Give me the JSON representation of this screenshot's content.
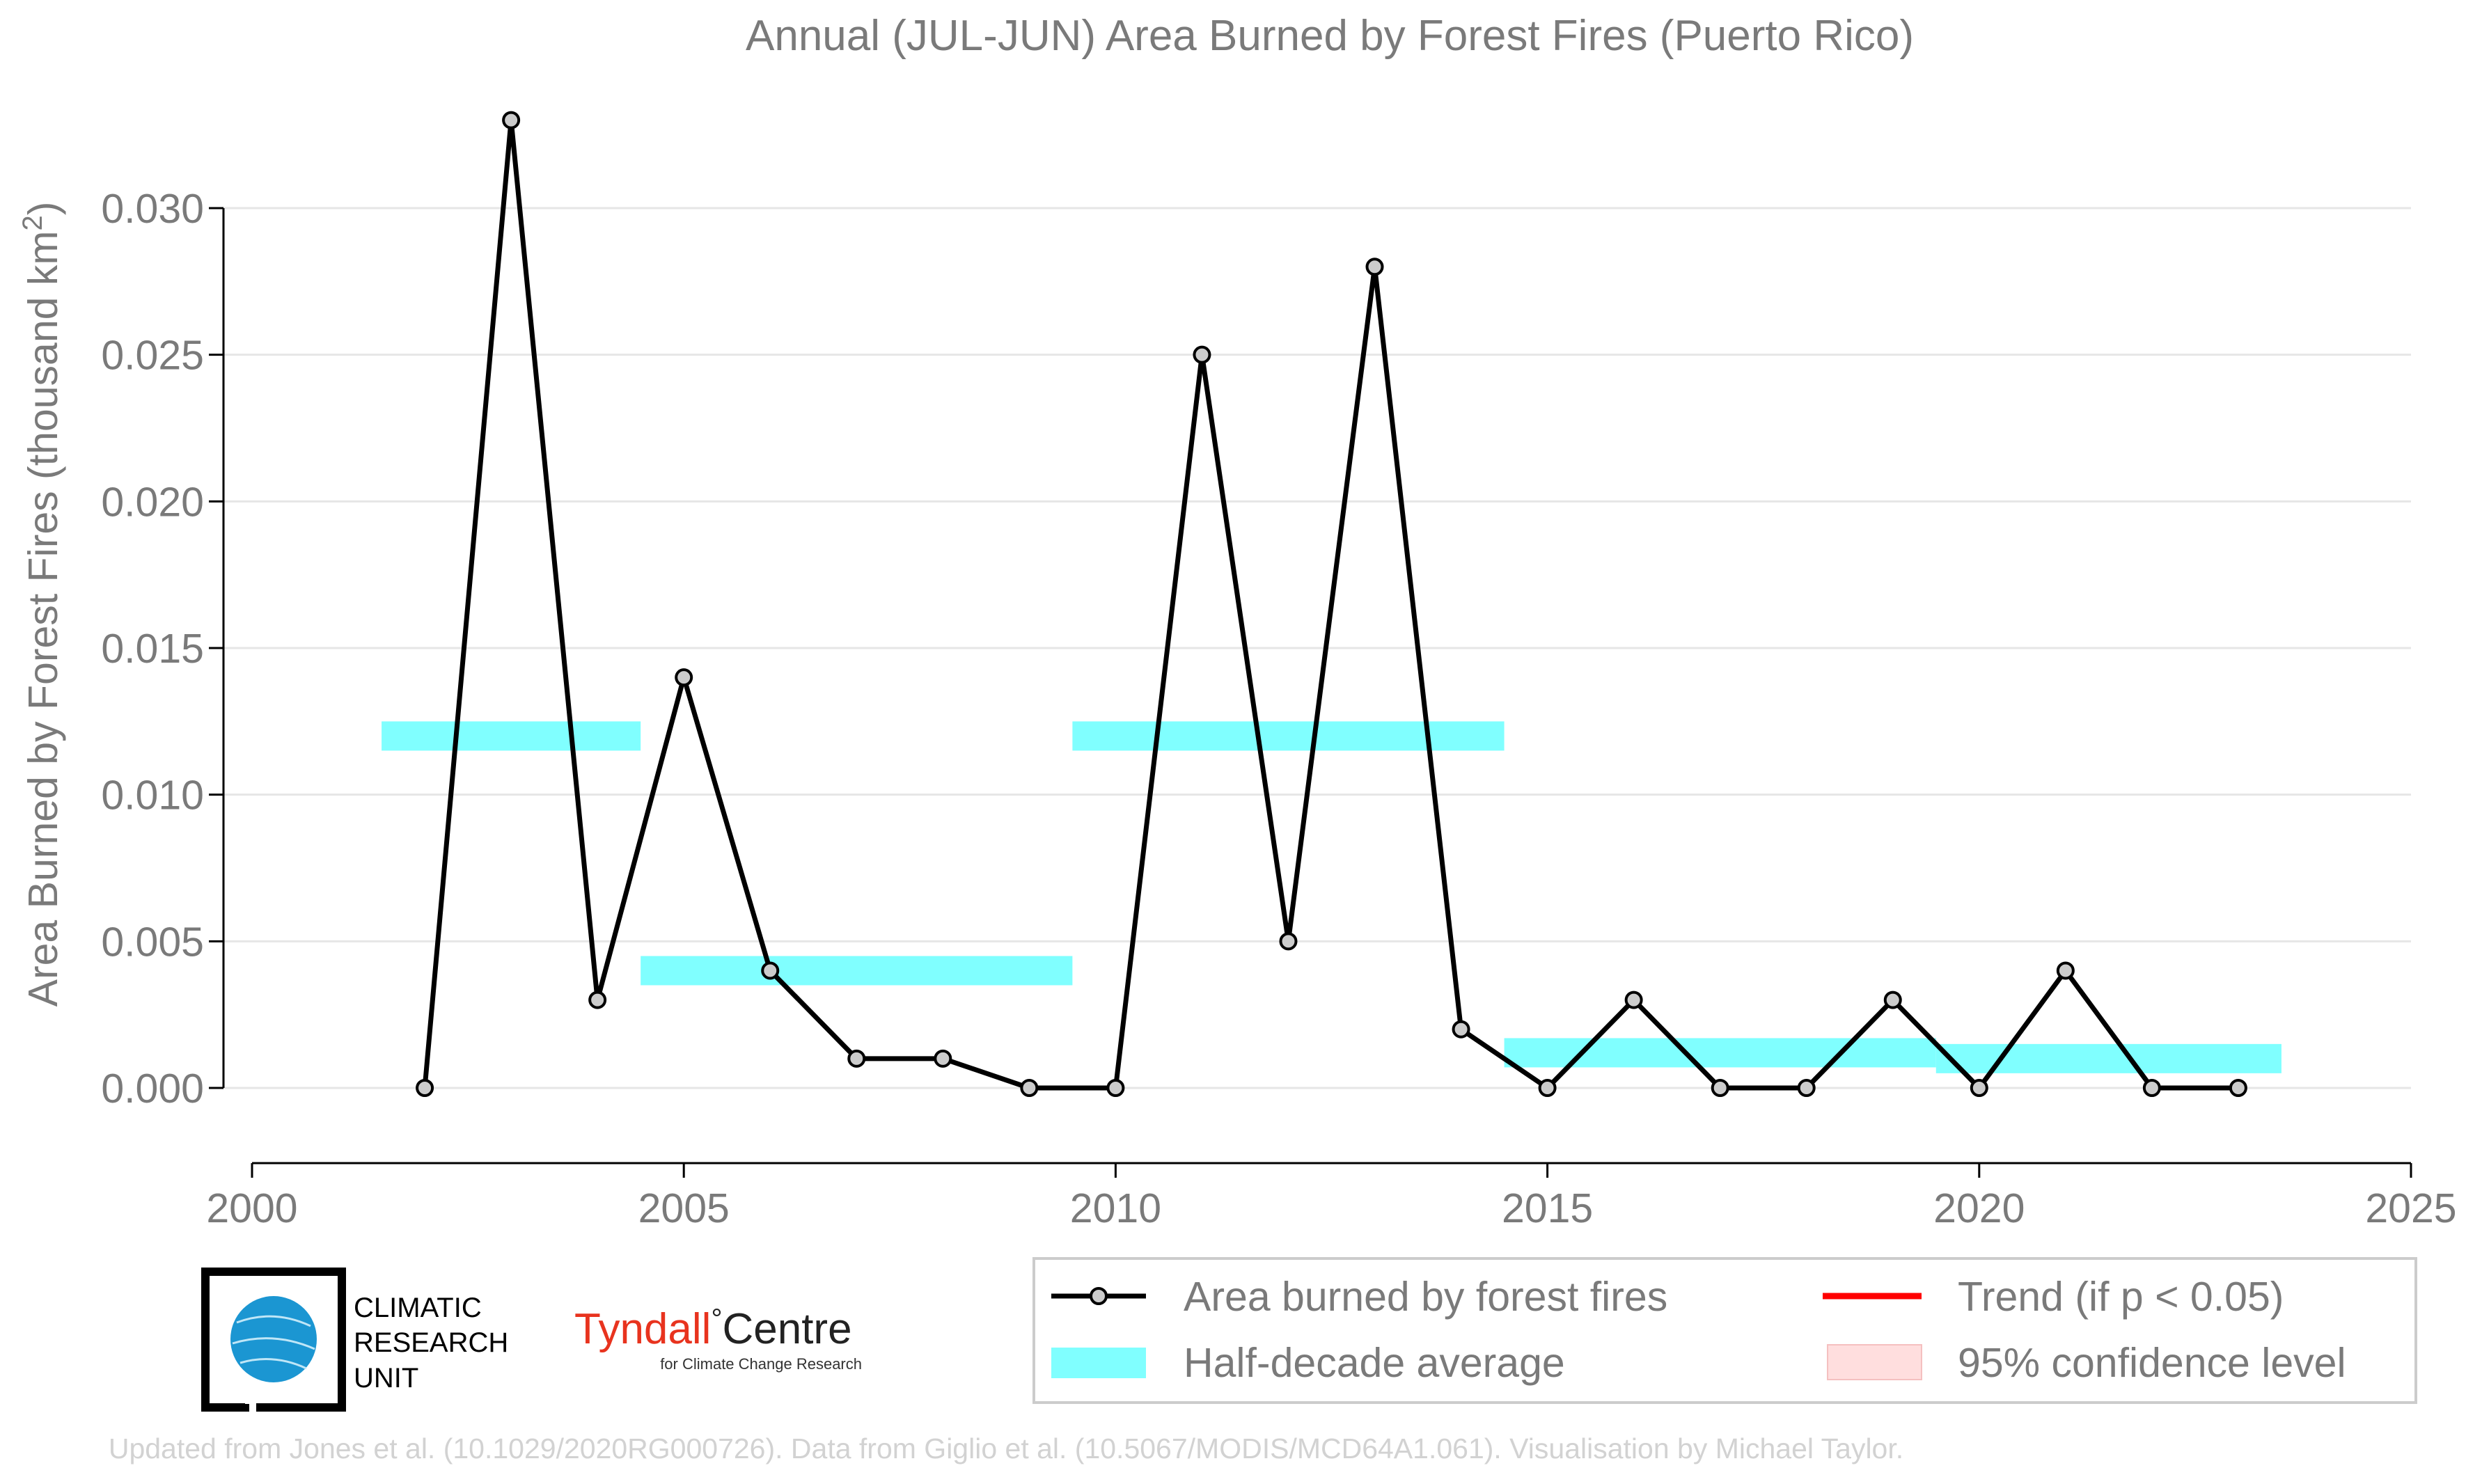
{
  "chart_data": {
    "type": "line",
    "title": "Annual (JUL-JUN) Area Burned by Forest Fires (Puerto Rico)",
    "ylabel": "Area Burned by Forest Fires (thousand km²)",
    "xlabel": "",
    "xlim": [
      2000,
      2025
    ],
    "ylim": [
      -0.0025,
      0.0335
    ],
    "xticks": [
      2000,
      2005,
      2010,
      2015,
      2020,
      2025
    ],
    "yticks": [
      0.0,
      0.005,
      0.01,
      0.015,
      0.02,
      0.025,
      0.03
    ],
    "ytick_labels": [
      "0.000",
      "0.005",
      "0.010",
      "0.015",
      "0.020",
      "0.025",
      "0.030"
    ],
    "grid": "horizontal",
    "series": [
      {
        "name": "Area burned by forest fires",
        "kind": "line-markers",
        "color": "#000000",
        "marker_fill": "#cccccc",
        "x": [
          2002,
          2003,
          2004,
          2005,
          2006,
          2007,
          2008,
          2009,
          2010,
          2011,
          2012,
          2013,
          2014,
          2015,
          2016,
          2017,
          2018,
          2019,
          2020,
          2021,
          2022,
          2023
        ],
        "y": [
          0.0,
          0.033,
          0.003,
          0.014,
          0.004,
          0.001,
          0.001,
          0.0,
          0.0,
          0.025,
          0.005,
          0.028,
          0.002,
          0.0,
          0.003,
          0.0,
          0.0,
          0.003,
          0.0,
          0.004,
          0.0,
          0.0
        ]
      },
      {
        "name": "Half-decade average",
        "kind": "bars",
        "color": "#80ffff",
        "segments": [
          {
            "x0": 2001.5,
            "x1": 2004.5,
            "y": 0.012
          },
          {
            "x0": 2004.5,
            "x1": 2009.5,
            "y": 0.004
          },
          {
            "x0": 2009.5,
            "x1": 2014.5,
            "y": 0.012
          },
          {
            "x0": 2014.5,
            "x1": 2019.5,
            "y": 0.0012
          },
          {
            "x0": 2019.5,
            "x1": 2023.5,
            "y": 0.001
          }
        ]
      }
    ],
    "legend": {
      "placement": "bottom-right",
      "entries": [
        {
          "label": "Area burned by forest fires",
          "kind": "line-marker",
          "color": "#000000"
        },
        {
          "label": "Trend (if p < 0.05)",
          "kind": "line",
          "color": "#ff0000"
        },
        {
          "label": "Half-decade average",
          "kind": "band",
          "color": "#80ffff"
        },
        {
          "label": "95% confidence level",
          "kind": "patch",
          "color": "#ffcccc"
        }
      ]
    }
  },
  "logos": {
    "cru": [
      "CLIMATIC",
      "RESEARCH",
      "UNIT"
    ],
    "tyndall_main": "Tyndall",
    "tyndall_degree": "°",
    "tyndall_centre": "Centre",
    "tyndall_sub": "for Climate Change Research"
  },
  "credit": "Updated from Jones et al. (10.1029/2020RG000726). Data from Giglio et al. (10.5067/MODIS/MCD64A1.061). Visualisation by Michael Taylor."
}
